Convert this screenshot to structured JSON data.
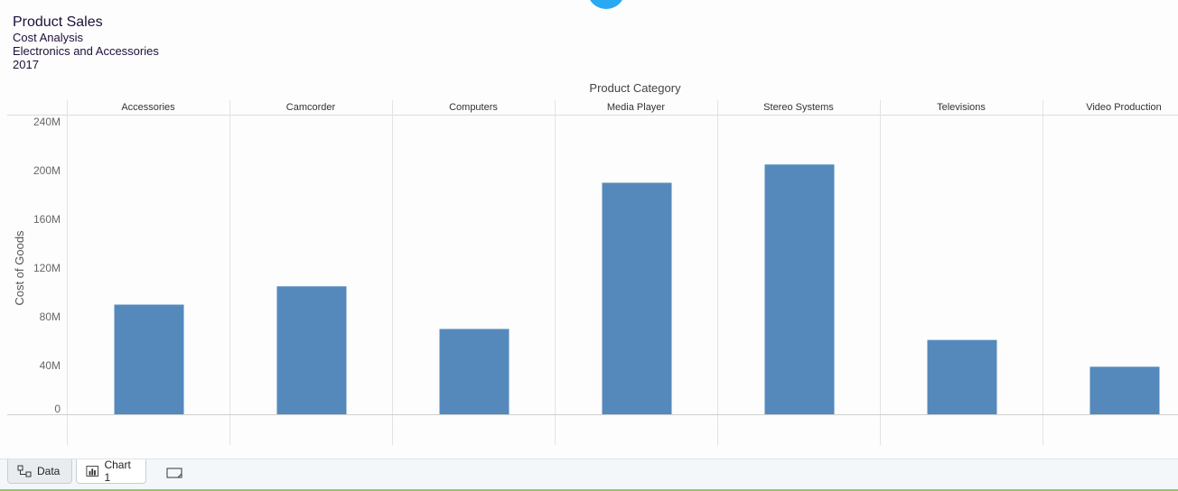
{
  "report": {
    "title": "Product Sales",
    "subtitle1": "Cost Analysis",
    "subtitle2": "Electronics and Accessories",
    "subtitle3": "2017"
  },
  "tabs": {
    "data_label": "Data",
    "chart_label": "Chart 1"
  },
  "chart_data": {
    "type": "bar",
    "title": "Product Category",
    "xlabel": "Product Category",
    "ylabel": "Cost of Goods",
    "categories": [
      "Accessories",
      "Camcorder",
      "Computers",
      "Media Player",
      "Stereo Systems",
      "Televisions",
      "Video Production"
    ],
    "values": [
      90,
      105,
      70,
      190,
      205,
      61,
      39
    ],
    "ylim": [
      0,
      240
    ],
    "yticks": [
      0,
      40,
      80,
      120,
      160,
      200,
      240
    ],
    "ytick_labels": [
      "0",
      "40M",
      "80M",
      "120M",
      "160M",
      "200M",
      "240M"
    ],
    "bar_color": "#5589bc",
    "grid": true
  }
}
